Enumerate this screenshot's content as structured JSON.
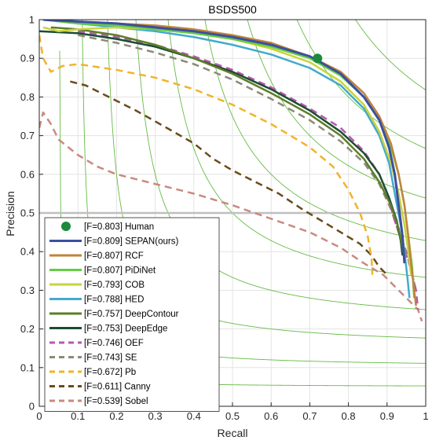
{
  "chart_data": {
    "type": "line",
    "title": "BSDS500",
    "xlabel": "Recall",
    "ylabel": "Precision",
    "xlim": [
      0,
      1
    ],
    "ylim": [
      0,
      1
    ],
    "xticks": [
      "0",
      "0.1",
      "0.2",
      "0.3",
      "0.4",
      "0.5",
      "0.6",
      "0.7",
      "0.8",
      "0.9",
      "1"
    ],
    "yticks": [
      "0",
      "0.1",
      "0.2",
      "0.3",
      "0.4",
      "0.5",
      "0.6",
      "0.7",
      "0.8",
      "0.9",
      "1"
    ],
    "grid": true,
    "legend_position": "bottom-left",
    "reference_line": {
      "y": 0.5,
      "color": "#bfbfbf"
    },
    "iso_f_curves": {
      "f_values": [
        0.1,
        0.2,
        0.3,
        0.4,
        0.5,
        0.6,
        0.7,
        0.8,
        0.9
      ],
      "color": "#66bb44"
    },
    "human": {
      "label": "[F=0.803] Human",
      "recall": 0.72,
      "precision": 0.9,
      "color": "#1b8a3a"
    },
    "series": [
      {
        "name": "[F=0.809] SEPAN(ours)",
        "color": "#3c4fa0",
        "dash": false,
        "width": 3,
        "points": [
          [
            0.01,
            1.0
          ],
          [
            0.1,
            0.995
          ],
          [
            0.2,
            0.99
          ],
          [
            0.3,
            0.98
          ],
          [
            0.4,
            0.97
          ],
          [
            0.5,
            0.955
          ],
          [
            0.6,
            0.935
          ],
          [
            0.7,
            0.905
          ],
          [
            0.78,
            0.86
          ],
          [
            0.84,
            0.8
          ],
          [
            0.88,
            0.74
          ],
          [
            0.905,
            0.67
          ],
          [
            0.92,
            0.6
          ],
          [
            0.93,
            0.52
          ],
          [
            0.94,
            0.44
          ],
          [
            0.945,
            0.37
          ]
        ]
      },
      {
        "name": "[F=0.807] RCF",
        "color": "#c0843c",
        "dash": false,
        "width": 2.5,
        "points": [
          [
            0.01,
            1.0
          ],
          [
            0.1,
            0.995
          ],
          [
            0.2,
            0.99
          ],
          [
            0.3,
            0.985
          ],
          [
            0.4,
            0.975
          ],
          [
            0.5,
            0.96
          ],
          [
            0.6,
            0.94
          ],
          [
            0.7,
            0.905
          ],
          [
            0.78,
            0.865
          ],
          [
            0.84,
            0.81
          ],
          [
            0.88,
            0.75
          ],
          [
            0.91,
            0.68
          ],
          [
            0.93,
            0.6
          ],
          [
            0.945,
            0.52
          ],
          [
            0.955,
            0.44
          ],
          [
            0.962,
            0.37
          ],
          [
            0.97,
            0.3
          ],
          [
            0.975,
            0.26
          ]
        ]
      },
      {
        "name": "[F=0.807] PiDiNet",
        "color": "#66cc44",
        "dash": false,
        "width": 2.5,
        "points": [
          [
            0.01,
            1.0
          ],
          [
            0.1,
            0.99
          ],
          [
            0.2,
            0.985
          ],
          [
            0.3,
            0.975
          ],
          [
            0.4,
            0.965
          ],
          [
            0.5,
            0.95
          ],
          [
            0.6,
            0.93
          ],
          [
            0.7,
            0.9
          ],
          [
            0.78,
            0.855
          ],
          [
            0.84,
            0.8
          ],
          [
            0.88,
            0.74
          ],
          [
            0.91,
            0.67
          ],
          [
            0.93,
            0.6
          ],
          [
            0.945,
            0.52
          ],
          [
            0.955,
            0.44
          ],
          [
            0.965,
            0.36
          ],
          [
            0.97,
            0.28
          ]
        ]
      },
      {
        "name": "[F=0.793] COB",
        "color": "#c8d43a",
        "dash": false,
        "width": 2.5,
        "points": [
          [
            0.01,
            0.98
          ],
          [
            0.05,
            0.97
          ],
          [
            0.1,
            0.975
          ],
          [
            0.2,
            0.98
          ],
          [
            0.3,
            0.975
          ],
          [
            0.4,
            0.965
          ],
          [
            0.5,
            0.95
          ],
          [
            0.6,
            0.925
          ],
          [
            0.7,
            0.89
          ],
          [
            0.78,
            0.84
          ],
          [
            0.84,
            0.78
          ],
          [
            0.88,
            0.71
          ],
          [
            0.91,
            0.63
          ],
          [
            0.93,
            0.55
          ],
          [
            0.945,
            0.47
          ],
          [
            0.955,
            0.4
          ],
          [
            0.962,
            0.34
          ]
        ]
      },
      {
        "name": "[F=0.788] HED",
        "color": "#44aacc",
        "dash": false,
        "width": 2.5,
        "points": [
          [
            0.01,
            1.0
          ],
          [
            0.1,
            0.99
          ],
          [
            0.2,
            0.98
          ],
          [
            0.3,
            0.97
          ],
          [
            0.4,
            0.955
          ],
          [
            0.5,
            0.935
          ],
          [
            0.6,
            0.91
          ],
          [
            0.7,
            0.875
          ],
          [
            0.78,
            0.83
          ],
          [
            0.84,
            0.77
          ],
          [
            0.88,
            0.7
          ],
          [
            0.905,
            0.63
          ],
          [
            0.92,
            0.55
          ],
          [
            0.935,
            0.47
          ],
          [
            0.945,
            0.4
          ],
          [
            0.953,
            0.33
          ],
          [
            0.958,
            0.28
          ]
        ]
      },
      {
        "name": "[F=0.757] DeepContour",
        "color": "#5e7d28",
        "dash": false,
        "width": 2.5,
        "points": [
          [
            0.03,
            0.98
          ],
          [
            0.1,
            0.975
          ],
          [
            0.2,
            0.96
          ],
          [
            0.3,
            0.935
          ],
          [
            0.4,
            0.9
          ],
          [
            0.5,
            0.86
          ],
          [
            0.6,
            0.81
          ],
          [
            0.7,
            0.755
          ],
          [
            0.78,
            0.7
          ],
          [
            0.84,
            0.64
          ],
          [
            0.88,
            0.58
          ],
          [
            0.91,
            0.52
          ],
          [
            0.93,
            0.46
          ],
          [
            0.94,
            0.41
          ],
          [
            0.945,
            0.38
          ]
        ]
      },
      {
        "name": "[F=0.753] DeepEdge",
        "color": "#1a4d32",
        "dash": false,
        "width": 2.5,
        "points": [
          [
            0.0,
            0.97
          ],
          [
            0.1,
            0.965
          ],
          [
            0.2,
            0.95
          ],
          [
            0.3,
            0.93
          ],
          [
            0.4,
            0.9
          ],
          [
            0.5,
            0.865
          ],
          [
            0.6,
            0.82
          ],
          [
            0.7,
            0.765
          ],
          [
            0.78,
            0.71
          ],
          [
            0.84,
            0.655
          ],
          [
            0.88,
            0.6
          ],
          [
            0.905,
            0.54
          ],
          [
            0.925,
            0.48
          ],
          [
            0.935,
            0.43
          ],
          [
            0.94,
            0.39
          ]
        ]
      },
      {
        "name": "[F=0.746] OEF",
        "color": "#b659b0",
        "dash": true,
        "width": 2.5,
        "points": [
          [
            0.1,
            0.97
          ],
          [
            0.2,
            0.955
          ],
          [
            0.3,
            0.935
          ],
          [
            0.4,
            0.905
          ],
          [
            0.5,
            0.87
          ],
          [
            0.6,
            0.825
          ],
          [
            0.7,
            0.77
          ],
          [
            0.78,
            0.72
          ],
          [
            0.84,
            0.66
          ],
          [
            0.88,
            0.6
          ],
          [
            0.9,
            0.55
          ],
          [
            0.92,
            0.48
          ],
          [
            0.94,
            0.42
          ],
          [
            0.96,
            0.36
          ],
          [
            0.975,
            0.3
          ],
          [
            0.98,
            0.25
          ]
        ]
      },
      {
        "name": "[F=0.743] SE",
        "color": "#8a8a7a",
        "dash": true,
        "width": 2.5,
        "points": [
          [
            0.1,
            0.96
          ],
          [
            0.2,
            0.94
          ],
          [
            0.3,
            0.915
          ],
          [
            0.4,
            0.885
          ],
          [
            0.5,
            0.845
          ],
          [
            0.6,
            0.795
          ],
          [
            0.7,
            0.74
          ],
          [
            0.78,
            0.685
          ],
          [
            0.84,
            0.63
          ],
          [
            0.88,
            0.575
          ],
          [
            0.91,
            0.51
          ],
          [
            0.93,
            0.45
          ],
          [
            0.95,
            0.4
          ],
          [
            0.965,
            0.34
          ],
          [
            0.975,
            0.3
          ]
        ]
      },
      {
        "name": "[F=0.672] Pb",
        "color": "#f0b429",
        "dash": true,
        "width": 2.5,
        "points": [
          [
            0.0,
            0.96
          ],
          [
            0.01,
            0.9
          ],
          [
            0.03,
            0.865
          ],
          [
            0.06,
            0.88
          ],
          [
            0.1,
            0.885
          ],
          [
            0.2,
            0.87
          ],
          [
            0.3,
            0.85
          ],
          [
            0.4,
            0.82
          ],
          [
            0.5,
            0.78
          ],
          [
            0.6,
            0.73
          ],
          [
            0.7,
            0.67
          ],
          [
            0.76,
            0.62
          ],
          [
            0.8,
            0.56
          ],
          [
            0.83,
            0.5
          ],
          [
            0.85,
            0.44
          ],
          [
            0.86,
            0.38
          ],
          [
            0.862,
            0.34
          ]
        ]
      },
      {
        "name": "[F=0.611] Canny",
        "color": "#6a4b1c",
        "dash": true,
        "width": 2.5,
        "points": [
          [
            0.08,
            0.84
          ],
          [
            0.12,
            0.83
          ],
          [
            0.18,
            0.8
          ],
          [
            0.25,
            0.765
          ],
          [
            0.33,
            0.72
          ],
          [
            0.4,
            0.68
          ],
          [
            0.45,
            0.64
          ],
          [
            0.5,
            0.61
          ],
          [
            0.56,
            0.58
          ],
          [
            0.62,
            0.55
          ],
          [
            0.68,
            0.51
          ],
          [
            0.73,
            0.48
          ],
          [
            0.78,
            0.45
          ],
          [
            0.83,
            0.42
          ],
          [
            0.86,
            0.39
          ],
          [
            0.88,
            0.36
          ],
          [
            0.9,
            0.34
          ]
        ]
      },
      {
        "name": "[F=0.539] Sobel",
        "color": "#c98a80",
        "dash": true,
        "width": 2.5,
        "points": [
          [
            0.0,
            0.72
          ],
          [
            0.01,
            0.76
          ],
          [
            0.03,
            0.73
          ],
          [
            0.05,
            0.69
          ],
          [
            0.1,
            0.65
          ],
          [
            0.15,
            0.62
          ],
          [
            0.2,
            0.6
          ],
          [
            0.3,
            0.575
          ],
          [
            0.4,
            0.55
          ],
          [
            0.5,
            0.52
          ],
          [
            0.6,
            0.485
          ],
          [
            0.7,
            0.45
          ],
          [
            0.78,
            0.41
          ],
          [
            0.84,
            0.37
          ],
          [
            0.89,
            0.34
          ],
          [
            0.93,
            0.3
          ],
          [
            0.96,
            0.27
          ],
          [
            0.98,
            0.25
          ],
          [
            0.99,
            0.22
          ]
        ]
      }
    ]
  }
}
